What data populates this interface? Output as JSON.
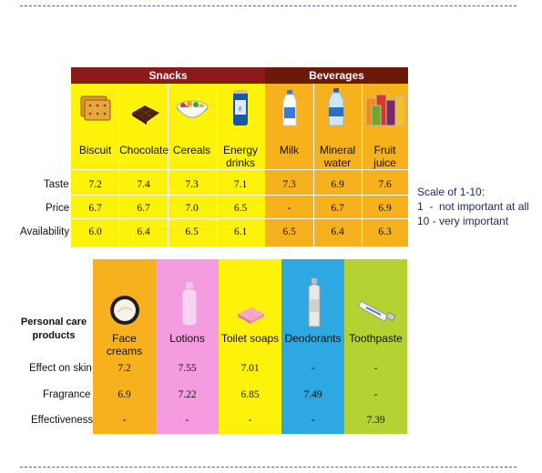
{
  "snacks_table": {
    "group_labels": {
      "snacks": "Snacks",
      "beverages": "Beverages"
    },
    "columns": [
      {
        "label": "Biscuit",
        "icon": "biscuit-icon",
        "values": [
          "7.2",
          "6.7",
          "6.0"
        ]
      },
      {
        "label": "Chocolate",
        "icon": "chocolate-icon",
        "values": [
          "7.4",
          "6.7",
          "6.4"
        ]
      },
      {
        "label": "Cereals",
        "icon": "cereal-bowl-icon",
        "values": [
          "7.3",
          "7.0",
          "6.5"
        ]
      },
      {
        "label": "Energy drinks",
        "icon": "energy-drink-can-icon",
        "values": [
          "7.1",
          "6.5",
          "6.1"
        ]
      },
      {
        "label": "Milk",
        "icon": "milk-bottle-icon",
        "values": [
          "7.3",
          "-",
          "6.5"
        ]
      },
      {
        "label": "Mineral water",
        "icon": "water-bottle-icon",
        "values": [
          "6.9",
          "6.7",
          "6.4"
        ]
      },
      {
        "label": "Fruit juice",
        "icon": "fruit-juice-icon",
        "values": [
          "7.6",
          "6.9",
          "6.3"
        ]
      }
    ],
    "row_labels": [
      "Taste",
      "Price",
      "Availability"
    ],
    "colors": {
      "snacks_bg": "#fdf30a",
      "beverages_bg": "#f7b11c",
      "snacks_band": "#8b1a1a",
      "beverages_band": "#6b1a0a"
    }
  },
  "scale_note": {
    "title": "Scale of 1-10:",
    "line1": "1  -  not important at all",
    "line2": "10 - very important"
  },
  "personal_care_table": {
    "title": "Personal care products",
    "columns": [
      {
        "label": "Face creams",
        "icon": "face-cream-jar-icon",
        "color": "#f7b11c",
        "values": [
          "7.2",
          "6.9",
          "-"
        ]
      },
      {
        "label": "Lotions",
        "icon": "lotion-bottle-icon",
        "color": "#f59be0",
        "values": [
          "7.55",
          "7.22",
          "-"
        ]
      },
      {
        "label": "Toilet soaps",
        "icon": "soap-bar-icon",
        "color": "#fdf30a",
        "values": [
          "7.01",
          "6.85",
          "-"
        ]
      },
      {
        "label": "Deodorants",
        "icon": "deodorant-can-icon",
        "color": "#2ea8e0",
        "values": [
          "-",
          "7.49",
          "-"
        ]
      },
      {
        "label": "Toothpaste",
        "icon": "toothpaste-tube-icon",
        "color": "#b4d333",
        "values": [
          "-",
          "-",
          "7.39"
        ]
      }
    ],
    "row_labels": [
      "Effect on skin",
      "Fragrance",
      "Effectiveness"
    ]
  }
}
